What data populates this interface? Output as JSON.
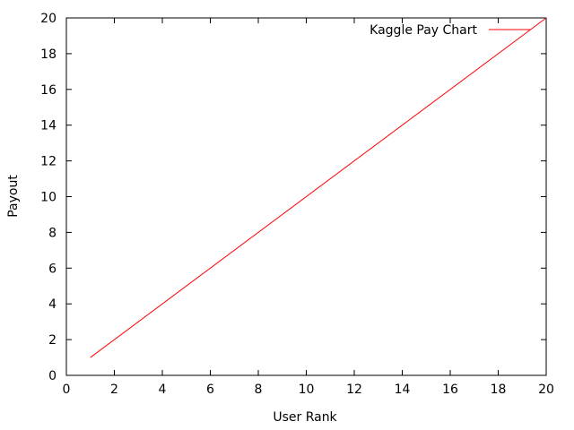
{
  "chart_data": {
    "type": "line",
    "xlabel": "User Rank",
    "ylabel": "Payout",
    "xlim": [
      0,
      20
    ],
    "ylim": [
      0,
      20
    ],
    "xticks": [
      "0",
      "2",
      "4",
      "6",
      "8",
      "10",
      "12",
      "14",
      "16",
      "18",
      "20"
    ],
    "yticks": [
      "0",
      "2",
      "4",
      "6",
      "8",
      "10",
      "12",
      "14",
      "16",
      "18",
      "20"
    ],
    "grid": false,
    "legend_position": "top-right",
    "series": [
      {
        "name": "Kaggle Pay Chart",
        "color": "#ff0000",
        "x": [
          1,
          20
        ],
        "y": [
          1,
          20
        ]
      }
    ]
  }
}
